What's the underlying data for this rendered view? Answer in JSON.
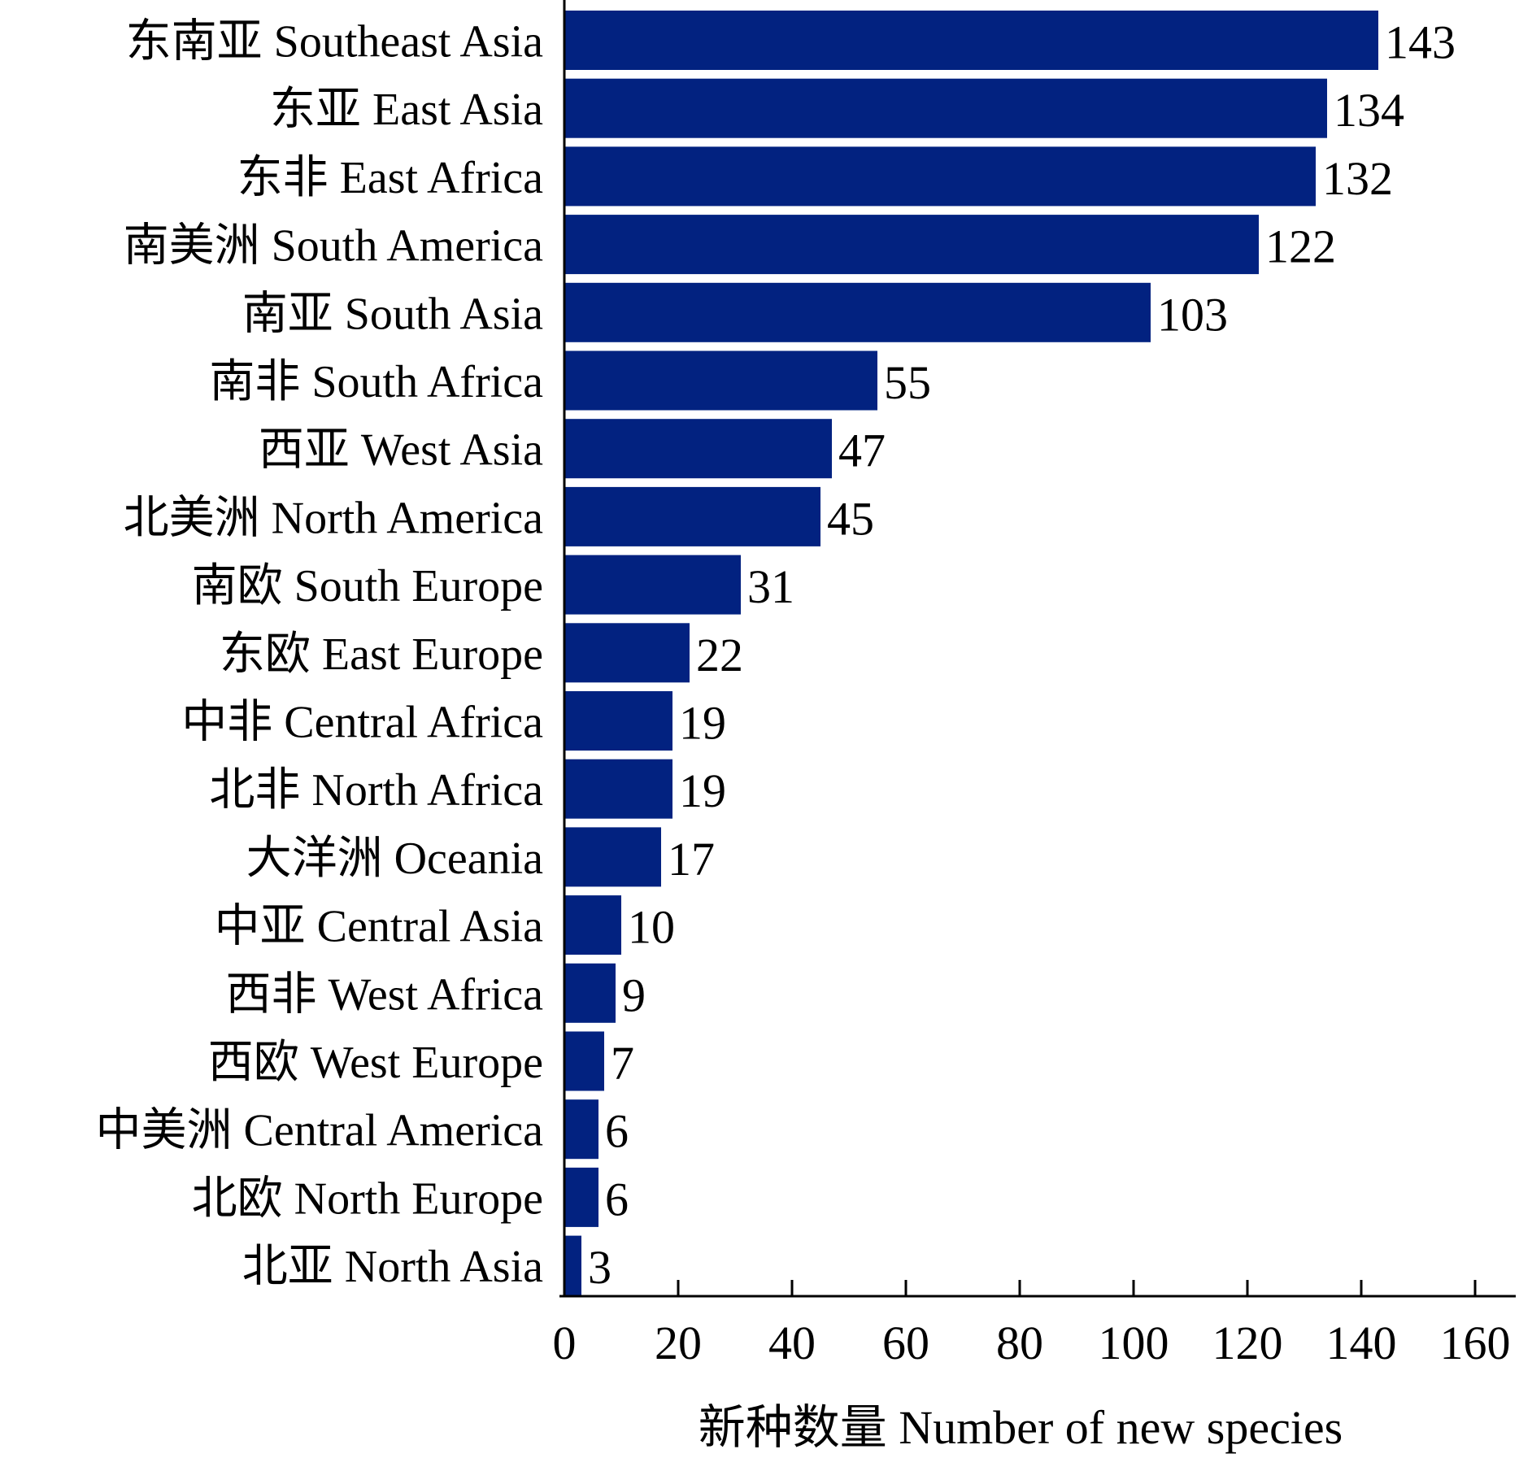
{
  "chart_data": {
    "type": "bar",
    "orientation": "horizontal",
    "title": "",
    "xlabel": "新种数量 Number of new species",
    "ylabel": "",
    "xlim": [
      0,
      160
    ],
    "x_ticks": [
      "0",
      "20",
      "40",
      "60",
      "80",
      "100",
      "120",
      "140",
      "160"
    ],
    "categories": [
      "东南亚 Southeast Asia",
      "东亚 East Asia",
      "东非 East Africa",
      "南美洲 South America",
      "南亚 South Asia",
      "南非 South Africa",
      "西亚 West Asia",
      "北美洲 North America",
      "南欧 South Europe",
      "东欧 East Europe",
      "中非 Central Africa",
      "北非 North Africa",
      "大洋洲 Oceania",
      "中亚 Central Asia",
      "西非 West Africa",
      "西欧 West Europe",
      "中美洲 Central America",
      "北欧 North Europe",
      "北亚 North Asia"
    ],
    "values": [
      143,
      134,
      132,
      122,
      103,
      55,
      47,
      45,
      31,
      22,
      19,
      19,
      17,
      10,
      9,
      7,
      6,
      6,
      3
    ],
    "value_labels": [
      "143",
      "134",
      "132",
      "122",
      "103",
      "55",
      "47",
      "45",
      "31",
      "22",
      "19",
      "19",
      "17",
      "10",
      "9",
      "7",
      "6",
      "6",
      "3"
    ],
    "grid": false,
    "legend": "none",
    "colors": {
      "bar": "#022280",
      "axis": "#000000",
      "text": "#000000"
    }
  }
}
